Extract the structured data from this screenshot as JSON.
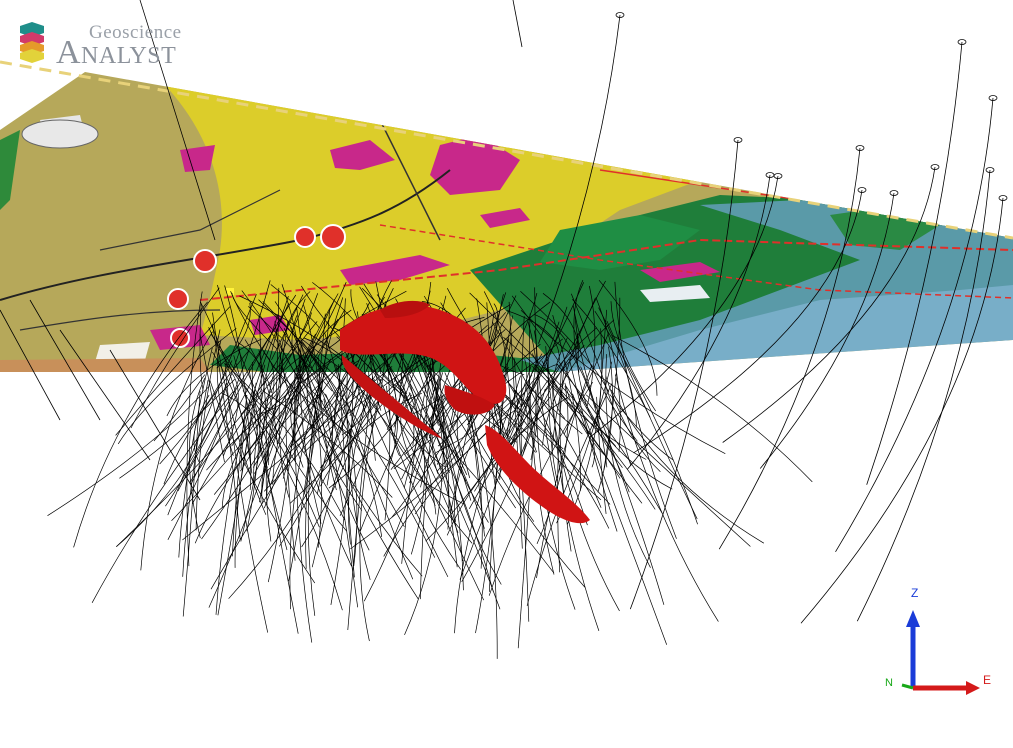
{
  "app": {
    "logo": {
      "word1": "Geoscience",
      "word2": "Analyst",
      "stack_colors": [
        "#1f8e8a",
        "#d23a6a",
        "#e59a2a",
        "#e2d23a"
      ]
    }
  },
  "scene": {
    "background": "#ffffff",
    "map_plane": {
      "geology_colors": {
        "khaki": "#b6a85a",
        "yellow": "#dccd2a",
        "magenta": "#c8288a",
        "green": "#1f7e3a",
        "teal": "#5a9aa8",
        "light_blue": "#78aec8",
        "red_line": "#e0302a",
        "boundary": "#e8d27a"
      },
      "road_markers": [
        "1",
        "2",
        "3",
        "4",
        "5",
        "6"
      ]
    },
    "ore_bodies_color": "#d01414",
    "drillhole_color": "#000000"
  },
  "axis_triad": {
    "z_label": "Z",
    "e_label": "E",
    "n_label": "N",
    "z_color": "#1a3cd8",
    "e_color": "#d41a1a",
    "n_color": "#18a818"
  }
}
